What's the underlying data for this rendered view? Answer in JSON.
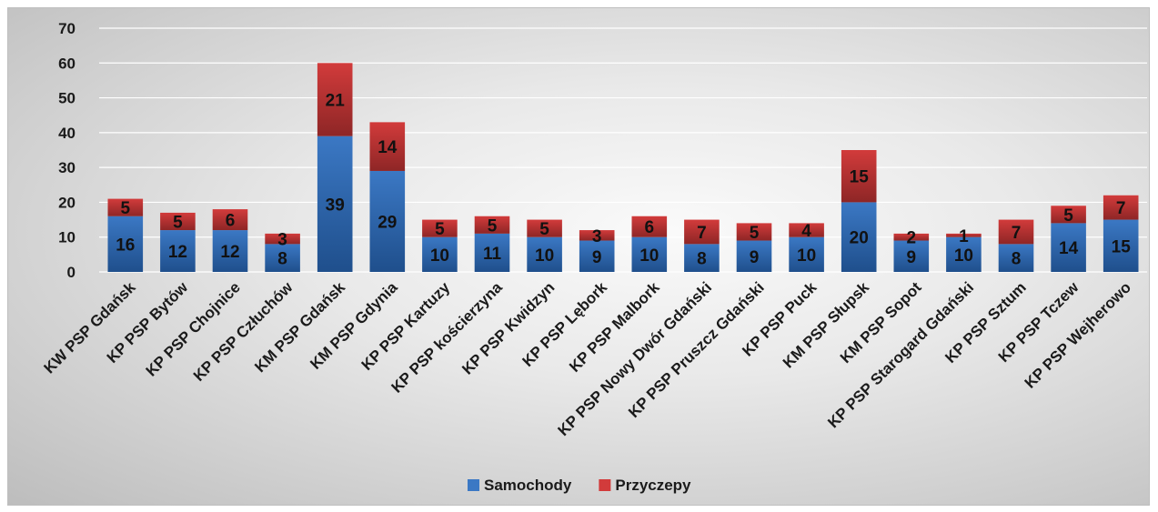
{
  "chart_data": {
    "type": "bar",
    "stacked": true,
    "categories": [
      "KW PSP Gdańsk",
      "KP PSP Bytów",
      "KP PSP Chojnice",
      "KP PSP Człuchów",
      "KM PSP Gdańsk",
      "KM PSP Gdynia",
      "KP PSP Kartuzy",
      "KP PSP kościerzyna",
      "KP PSP Kwidzyn",
      "KP PSP Lębork",
      "KP PSP Malbork",
      "KP PSP Nowy Dwór Gdański",
      "KP PSP Pruszcz Gdański",
      "KP PSP Puck",
      "KM PSP Słupsk",
      "KM PSP Sopot",
      "KP PSP Starogard Gdański",
      "KP PSP Sztum",
      "KP PSP Tczew",
      "KP PSP Wejherowo"
    ],
    "series": [
      {
        "name": "Samochody",
        "color": "#3b78c4",
        "color_dark": "#1f4f8c",
        "values": [
          16,
          12,
          12,
          8,
          39,
          29,
          10,
          11,
          10,
          9,
          10,
          8,
          9,
          10,
          20,
          9,
          10,
          8,
          14,
          15
        ]
      },
      {
        "name": "Przyczepy",
        "color": "#d23b3b",
        "color_dark": "#8e2626",
        "values": [
          5,
          5,
          6,
          3,
          21,
          14,
          5,
          5,
          5,
          3,
          6,
          7,
          5,
          4,
          15,
          2,
          1,
          7,
          5,
          7
        ]
      }
    ],
    "yticks": [
      "0",
      "10",
      "20",
      "30",
      "40",
      "50",
      "60",
      "70"
    ],
    "ylim": [
      0,
      70
    ],
    "grid": true,
    "legend_position": "bottom"
  }
}
